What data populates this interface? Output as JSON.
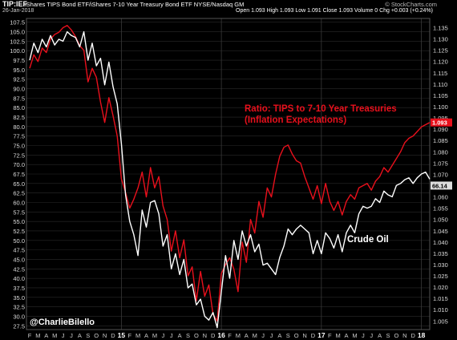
{
  "header": {
    "symbol": "TIP:IEF",
    "description": "iShares TIPS Bond ETF/iShares 7-10 Year Treasury Bond ETF  NYSE/Nasdaq GM",
    "credit": "© StockCharts.com",
    "date": "26-Jan-2018",
    "ohlc": "Open 1.093  High 1.093  Low 1.091  Close 1.093  Volume 0  Chg +0.003 (+0.24%)"
  },
  "colors": {
    "background": "#000000",
    "ratio_line": "#e8101c",
    "oil_line": "#ffffff",
    "grid": "#2a2a2a"
  },
  "annotations": {
    "ratio_title": "Ratio: TIPS to 7-10 Year Treasuries",
    "ratio_subtitle": "(Inflation Expectations)",
    "oil_label": "Crude Oil",
    "watermark": "@CharlieBilello"
  },
  "chart_data": {
    "type": "line",
    "x_ticks": [
      "F",
      "M",
      "A",
      "M",
      "J",
      "J",
      "A",
      "S",
      "O",
      "N",
      "D",
      "15",
      "F",
      "M",
      "A",
      "M",
      "J",
      "J",
      "A",
      "S",
      "O",
      "N",
      "D",
      "16",
      "F",
      "M",
      "A",
      "M",
      "J",
      "J",
      "A",
      "S",
      "O",
      "N",
      "D",
      "17",
      "F",
      "M",
      "A",
      "M",
      "J",
      "J",
      "A",
      "S",
      "O",
      "N",
      "D",
      "18"
    ],
    "x_tick_bold": [
      false,
      false,
      false,
      false,
      false,
      false,
      false,
      false,
      false,
      false,
      false,
      true,
      false,
      false,
      false,
      false,
      false,
      false,
      false,
      false,
      false,
      false,
      false,
      true,
      false,
      false,
      false,
      false,
      false,
      false,
      false,
      false,
      false,
      false,
      false,
      true,
      false,
      false,
      false,
      false,
      false,
      false,
      false,
      false,
      false,
      false,
      false,
      true
    ],
    "left_axis": {
      "ticks": [
        "27.5",
        "30.0",
        "32.5",
        "35.0",
        "37.5",
        "40.0",
        "42.5",
        "45.0",
        "47.5",
        "50.0",
        "52.5",
        "55.0",
        "57.5",
        "60.0",
        "62.5",
        "65.0",
        "67.5",
        "70.0",
        "72.5",
        "75.0",
        "77.5",
        "80.0",
        "82.5",
        "85.0",
        "87.5",
        "90.0",
        "92.5",
        "95.0",
        "97.5",
        "100.0",
        "102.5",
        "105.0",
        "107.5"
      ],
      "range": [
        26.5,
        108.5
      ]
    },
    "right_axis": {
      "ticks": [
        "1.005",
        "1.010",
        "1.015",
        "1.020",
        "1.025",
        "1.030",
        "1.035",
        "1.040",
        "1.045",
        "1.050",
        "1.055",
        "1.060",
        "1.065",
        "1.070",
        "1.075",
        "1.080",
        "1.085",
        "1.090",
        "1.095",
        "1.100",
        "1.105",
        "1.110",
        "1.115",
        "1.120",
        "1.125",
        "1.130",
        "1.135"
      ],
      "range": [
        1.0012,
        1.1391
      ]
    },
    "last_value_labels": {
      "ratio": "1.093",
      "oil": "66.14"
    },
    "series": [
      {
        "axis": "right",
        "x_month": [
          0,
          0.5,
          1,
          1.5,
          2,
          2.5,
          3,
          3.5,
          4,
          4.5,
          5,
          5.5,
          6,
          6.5,
          7,
          7.5,
          8,
          8.5,
          9,
          9.5,
          10,
          10.5,
          11,
          11.5,
          12,
          12.5,
          13,
          13.5,
          14,
          14.5,
          15,
          15.5,
          16,
          16.5,
          17,
          17.5,
          18,
          18.5,
          19,
          19.5,
          20,
          20.5,
          21,
          21.5,
          22,
          22.5,
          23,
          23.5,
          24,
          24.5,
          25,
          25.5,
          26,
          26.5,
          27,
          27.5,
          28,
          28.5,
          29,
          29.5,
          30,
          30.5,
          31,
          31.5,
          32,
          32.5,
          33,
          33.5,
          34,
          34.5,
          35,
          35.5,
          36,
          36.5,
          37,
          37.5,
          38,
          38.5,
          39,
          39.5,
          40,
          40.5,
          41,
          41.5,
          42,
          42.5,
          43,
          43.5,
          44,
          44.5,
          45,
          45.5,
          46,
          46.5,
          47,
          47.5,
          48
        ],
        "values": [
          1.117,
          1.123,
          1.12,
          1.126,
          1.124,
          1.13,
          1.132,
          1.133,
          1.135,
          1.136,
          1.134,
          1.131,
          1.127,
          1.125,
          1.111,
          1.117,
          1.113,
          1.102,
          1.093,
          1.104,
          1.096,
          1.087,
          1.068,
          1.062,
          1.055,
          1.059,
          1.064,
          1.071,
          1.06,
          1.073,
          1.064,
          1.069,
          1.056,
          1.05,
          1.036,
          1.045,
          1.033,
          1.041,
          1.025,
          1.029,
          1.014,
          1.027,
          1.016,
          1.021,
          1.008,
          1.005,
          1.026,
          1.03,
          1.033,
          1.028,
          1.018,
          1.04,
          1.031,
          1.05,
          1.044,
          1.058,
          1.051,
          1.064,
          1.06,
          1.07,
          1.078,
          1.082,
          1.083,
          1.079,
          1.076,
          1.075,
          1.069,
          1.064,
          1.059,
          1.065,
          1.057,
          1.066,
          1.058,
          1.054,
          1.058,
          1.052,
          1.058,
          1.061,
          1.059,
          1.064,
          1.065,
          1.066,
          1.063,
          1.067,
          1.069,
          1.073,
          1.071,
          1.074,
          1.077,
          1.08,
          1.084,
          1.086,
          1.087,
          1.089,
          1.091,
          1.092,
          1.093
        ]
      },
      {
        "axis": "left",
        "x_month": [
          0,
          0.5,
          1,
          1.5,
          2,
          2.5,
          3,
          3.5,
          4,
          4.5,
          5,
          5.5,
          6,
          6.5,
          7,
          7.5,
          8,
          8.5,
          9,
          9.5,
          10,
          10.5,
          11,
          11.5,
          12,
          12.5,
          13,
          13.5,
          14,
          14.5,
          15,
          15.5,
          16,
          16.5,
          17,
          17.5,
          18,
          18.5,
          19,
          19.5,
          20,
          20.5,
          21,
          21.5,
          22,
          22.5,
          23,
          23.5,
          24,
          24.5,
          25,
          25.5,
          26,
          26.5,
          27,
          27.5,
          28,
          28.5,
          29,
          29.5,
          30,
          30.5,
          31,
          31.5,
          32,
          32.5,
          33,
          33.5,
          34,
          34.5,
          35,
          35.5,
          36,
          36.5,
          37,
          37.5,
          38,
          38.5,
          39,
          39.5,
          40,
          40.5,
          41,
          41.5,
          42,
          42.5,
          43,
          43.5,
          44,
          44.5,
          45,
          45.5,
          46,
          46.5,
          47,
          47.5,
          48
        ],
        "values": [
          97.5,
          102,
          99.5,
          103,
          101,
          104,
          101.5,
          103,
          102.5,
          105,
          104,
          103.5,
          101,
          105,
          97.5,
          102,
          96,
          98,
          91,
          97,
          90.5,
          86,
          75.5,
          62,
          55,
          51.5,
          46,
          58,
          53.5,
          60,
          60.5,
          57,
          48.5,
          51.5,
          42.5,
          46.5,
          41,
          45,
          37.5,
          38.5,
          33,
          34.5,
          30,
          29,
          31,
          27,
          36.5,
          46,
          40,
          50,
          45,
          52.5,
          48.5,
          51.5,
          47,
          49,
          43.5,
          44,
          42.5,
          41,
          45.5,
          48.5,
          53,
          51.5,
          53,
          54,
          53,
          52,
          46.5,
          50,
          46.5,
          52,
          50.5,
          48,
          51.5,
          47,
          52,
          54,
          52,
          57,
          59,
          58.5,
          59,
          61,
          60,
          63,
          62,
          61.5,
          64.5,
          65,
          66,
          66.5,
          65,
          66.5,
          67.5,
          68,
          66.14
        ]
      }
    ]
  }
}
